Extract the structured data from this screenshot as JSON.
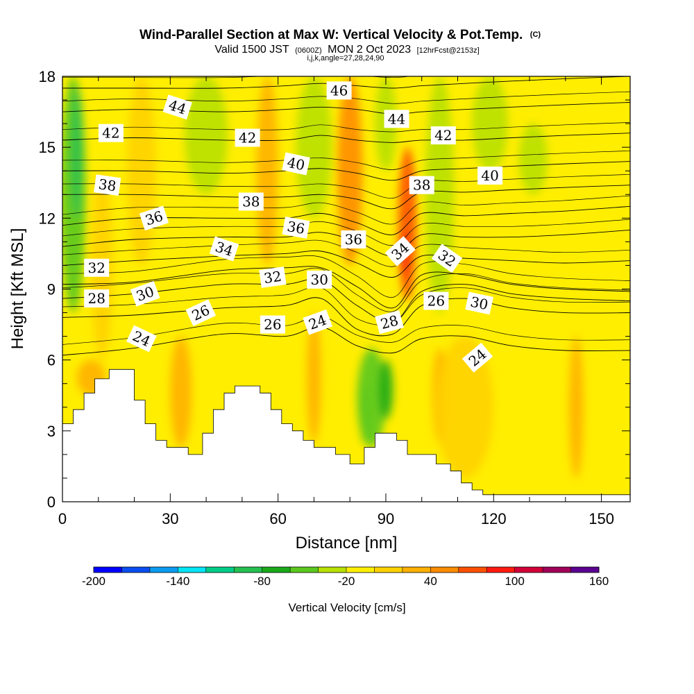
{
  "chart_data": {
    "type": "heatmap",
    "title": "Wind-Parallel Section at Max W: Vertical Velocity & Pot.Temp.",
    "title_mark": "(C)",
    "subtitle": {
      "valid": "Valid 1500 JST",
      "utc": "(0600Z)",
      "date": "MON 2 Oct 2023",
      "forecast": "[12hrFcst@2153z]",
      "line2": "i,j,k,angle=27,28,24,90"
    },
    "xlabel": "Distance [nm]",
    "ylabel": "Height [Kft MSL]",
    "xlim": [
      0,
      158
    ],
    "ylim": [
      0,
      18
    ],
    "xticks": [
      "0",
      "30",
      "60",
      "90",
      "120",
      "150"
    ],
    "yticks": [
      "0",
      "3",
      "6",
      "9",
      "12",
      "15",
      "18"
    ],
    "colorbar": {
      "title": "Vertical Velocity [cm/s]",
      "range": [
        -200,
        160
      ],
      "labels": [
        "-200",
        "-140",
        "-80",
        "-20",
        "40",
        "100",
        "160"
      ],
      "colors": [
        "#0000ff",
        "#0a4df0",
        "#0a9bef",
        "#00e5f5",
        "#00cc88",
        "#25c050",
        "#1aaa1a",
        "#5ac81e",
        "#b8e000",
        "#ffef00",
        "#ffd200",
        "#ffb000",
        "#ff8c00",
        "#ff5000",
        "#ff1a10",
        "#d20038",
        "#a00058",
        "#5a0090"
      ]
    },
    "background_color": "#ffee00",
    "terrain": [
      [
        0,
        3.3
      ],
      [
        3,
        3.9
      ],
      [
        6,
        4.6
      ],
      [
        9,
        5.2
      ],
      [
        13,
        5.6
      ],
      [
        20,
        4.3
      ],
      [
        23,
        3.3
      ],
      [
        26,
        2.6
      ],
      [
        29,
        2.3
      ],
      [
        35,
        2.0
      ],
      [
        39,
        2.9
      ],
      [
        42,
        3.9
      ],
      [
        45,
        4.6
      ],
      [
        48,
        4.9
      ],
      [
        55,
        4.6
      ],
      [
        58,
        3.9
      ],
      [
        61,
        3.3
      ],
      [
        64,
        3.0
      ],
      [
        67,
        2.6
      ],
      [
        70,
        2.3
      ],
      [
        76,
        2.0
      ],
      [
        80,
        1.6
      ],
      [
        84,
        2.3
      ],
      [
        87,
        2.9
      ],
      [
        93,
        2.6
      ],
      [
        96,
        2.0
      ],
      [
        104,
        1.6
      ],
      [
        108,
        1.3
      ],
      [
        111,
        0.8
      ],
      [
        114,
        0.5
      ],
      [
        117,
        0.3
      ],
      [
        158,
        0.3
      ]
    ],
    "shading": [
      {
        "x": 3,
        "ybot": 8,
        "ytop": 18,
        "w": 3.5,
        "value": -60
      },
      {
        "x": 4,
        "ybot": 12,
        "ytop": 17.5,
        "w": 1.5,
        "value": -90
      },
      {
        "x": 11,
        "ybot": 6,
        "ytop": 14,
        "w": 3,
        "value": 10
      },
      {
        "x": 22,
        "ybot": 10,
        "ytop": 18,
        "w": 4,
        "value": 15
      },
      {
        "x": 40,
        "ybot": 13,
        "ytop": 18,
        "w": 6,
        "value": -30
      },
      {
        "x": 57,
        "ybot": 10,
        "ytop": 18,
        "w": 3,
        "value": 25
      },
      {
        "x": 70,
        "ybot": 12,
        "ytop": 18,
        "w": 5,
        "value": -35
      },
      {
        "x": 80,
        "ybot": 10,
        "ytop": 18,
        "w": 3.5,
        "value": 40
      },
      {
        "x": 90,
        "ybot": 14,
        "ytop": 18,
        "w": 3,
        "value": -30
      },
      {
        "x": 96,
        "ybot": 8.5,
        "ytop": 15,
        "w": 2.5,
        "value": 60
      },
      {
        "x": 95,
        "ybot": 9.5,
        "ytop": 11.5,
        "w": 1,
        "value": 90
      },
      {
        "x": 105,
        "ybot": 8,
        "ytop": 18,
        "w": 4,
        "value": -30
      },
      {
        "x": 119,
        "ybot": 14,
        "ytop": 18,
        "w": 5,
        "value": -30
      },
      {
        "x": 131,
        "ybot": 13,
        "ytop": 16,
        "w": 4,
        "value": -30
      },
      {
        "x": 86,
        "ybot": 2.3,
        "ytop": 6.5,
        "w": 4,
        "value": -45
      },
      {
        "x": 90,
        "ybot": 3.5,
        "ytop": 6,
        "w": 2,
        "value": -75
      },
      {
        "x": 84,
        "ybot": 2.5,
        "ytop": 5,
        "w": 1.2,
        "value": -55
      },
      {
        "x": 105,
        "ybot": 2.5,
        "ytop": 6.5,
        "w": 2,
        "value": 35
      },
      {
        "x": 112,
        "ybot": 1,
        "ytop": 7,
        "w": 8,
        "value": 15
      },
      {
        "x": 143,
        "ybot": 1,
        "ytop": 7,
        "w": 2,
        "value": 25
      },
      {
        "x": 33,
        "ybot": 2.3,
        "ytop": 7,
        "w": 3,
        "value": 20
      },
      {
        "x": 70,
        "ybot": 2.5,
        "ytop": 8,
        "w": 2,
        "value": 30
      },
      {
        "x": 8,
        "ybot": 4.5,
        "ytop": 6,
        "w": 4,
        "value": 25
      }
    ],
    "theta_contours": [
      {
        "theta": 24,
        "y0": 6.2,
        "knots": [
          [
            0,
            6.2
          ],
          [
            20,
            6.5
          ],
          [
            45,
            7.1
          ],
          [
            62,
            7.0
          ],
          [
            72,
            7.4
          ],
          [
            82,
            6.6
          ],
          [
            92,
            6.3
          ],
          [
            100,
            6.9
          ],
          [
            112,
            7.0
          ],
          [
            125,
            6.6
          ],
          [
            140,
            6.4
          ],
          [
            158,
            6.4
          ]
        ]
      },
      {
        "theta": 26,
        "y0": 7.8,
        "knots": [
          [
            0,
            7.8
          ],
          [
            20,
            7.9
          ],
          [
            45,
            8.2
          ],
          [
            62,
            8.3
          ],
          [
            72,
            8.6
          ],
          [
            82,
            7.3
          ],
          [
            92,
            7.1
          ],
          [
            100,
            8.3
          ],
          [
            112,
            8.6
          ],
          [
            125,
            8.2
          ],
          [
            140,
            8.0
          ],
          [
            158,
            8.0
          ]
        ]
      },
      {
        "theta": 28,
        "y0": 8.6,
        "knots": [
          [
            0,
            8.6
          ],
          [
            20,
            8.8
          ],
          [
            45,
            9.2
          ],
          [
            62,
            9.2
          ],
          [
            72,
            9.4
          ],
          [
            82,
            8.3
          ],
          [
            92,
            7.6
          ],
          [
            100,
            8.9
          ],
          [
            112,
            9.2
          ],
          [
            125,
            8.8
          ],
          [
            140,
            8.6
          ],
          [
            158,
            8.5
          ]
        ]
      },
      {
        "theta": 30,
        "y0": 9.2,
        "knots": [
          [
            0,
            9.2
          ],
          [
            20,
            9.3
          ],
          [
            45,
            9.8
          ],
          [
            62,
            9.9
          ],
          [
            72,
            9.9
          ],
          [
            82,
            9.1
          ],
          [
            92,
            8.2
          ],
          [
            100,
            9.6
          ],
          [
            112,
            9.6
          ],
          [
            125,
            9.2
          ],
          [
            140,
            9.0
          ],
          [
            158,
            8.9
          ]
        ]
      },
      {
        "theta": 32,
        "y0": 10.0,
        "knots": [
          [
            0,
            10.0
          ],
          [
            20,
            10.2
          ],
          [
            45,
            10.4
          ],
          [
            62,
            10.5
          ],
          [
            72,
            10.6
          ],
          [
            82,
            10.1
          ],
          [
            92,
            9.5
          ],
          [
            100,
            10.4
          ],
          [
            112,
            10.3
          ],
          [
            125,
            10.2
          ],
          [
            140,
            10.1
          ],
          [
            158,
            10.2
          ]
        ]
      },
      {
        "theta": 34,
        "y0": 10.8,
        "knots": [
          [
            0,
            10.8
          ],
          [
            20,
            11.1
          ],
          [
            45,
            11.2
          ],
          [
            62,
            11.2
          ],
          [
            72,
            11.4
          ],
          [
            82,
            11.0
          ],
          [
            92,
            10.4
          ],
          [
            100,
            11.3
          ],
          [
            112,
            11.2
          ],
          [
            125,
            11.2
          ],
          [
            140,
            11.3
          ],
          [
            158,
            11.5
          ]
        ]
      },
      {
        "theta": 36,
        "y0": 11.7,
        "knots": [
          [
            0,
            11.7
          ],
          [
            20,
            12.0
          ],
          [
            45,
            12.0
          ],
          [
            62,
            12.0
          ],
          [
            72,
            12.2
          ],
          [
            82,
            11.8
          ],
          [
            92,
            11.3
          ],
          [
            100,
            12.2
          ],
          [
            112,
            12.1
          ],
          [
            125,
            12.2
          ],
          [
            140,
            12.3
          ],
          [
            158,
            12.5
          ]
        ]
      },
      {
        "theta": 38,
        "y0": 13.0,
        "knots": [
          [
            0,
            13.0
          ],
          [
            20,
            13.0
          ],
          [
            45,
            12.9
          ],
          [
            62,
            12.9
          ],
          [
            72,
            13.0
          ],
          [
            82,
            12.8
          ],
          [
            92,
            12.4
          ],
          [
            100,
            13.1
          ],
          [
            112,
            13.1
          ],
          [
            125,
            13.2
          ],
          [
            140,
            13.3
          ],
          [
            158,
            13.4
          ]
        ]
      },
      {
        "theta": 40,
        "y0": 14.0,
        "knots": [
          [
            0,
            14.0
          ],
          [
            20,
            14.0
          ],
          [
            45,
            13.9
          ],
          [
            62,
            14.0
          ],
          [
            72,
            14.1
          ],
          [
            82,
            13.9
          ],
          [
            92,
            13.6
          ],
          [
            100,
            14.0
          ],
          [
            112,
            14.1
          ],
          [
            125,
            14.2
          ],
          [
            140,
            14.3
          ],
          [
            158,
            14.4
          ]
        ]
      },
      {
        "theta": 42,
        "y0": 15.3,
        "knots": [
          [
            0,
            15.3
          ],
          [
            20,
            15.4
          ],
          [
            45,
            15.3
          ],
          [
            62,
            15.3
          ],
          [
            72,
            15.5
          ],
          [
            82,
            15.3
          ],
          [
            92,
            15.2
          ],
          [
            100,
            15.3
          ],
          [
            112,
            15.3
          ],
          [
            125,
            15.4
          ],
          [
            140,
            15.5
          ],
          [
            158,
            15.6
          ]
        ]
      },
      {
        "theta": 44,
        "y0": 16.5,
        "knots": [
          [
            0,
            16.5
          ],
          [
            20,
            16.6
          ],
          [
            45,
            16.5
          ],
          [
            62,
            16.6
          ],
          [
            72,
            16.7
          ],
          [
            82,
            16.6
          ],
          [
            92,
            16.4
          ],
          [
            100,
            16.5
          ],
          [
            112,
            16.6
          ],
          [
            125,
            16.7
          ],
          [
            140,
            16.8
          ],
          [
            158,
            16.9
          ]
        ]
      },
      {
        "theta": 46,
        "y0": 17.5,
        "knots": [
          [
            0,
            17.5
          ],
          [
            20,
            17.5
          ],
          [
            45,
            17.5
          ],
          [
            62,
            17.6
          ],
          [
            72,
            17.7
          ],
          [
            82,
            17.6
          ],
          [
            92,
            17.5
          ],
          [
            100,
            17.6
          ],
          [
            112,
            17.7
          ],
          [
            125,
            17.8
          ],
          [
            140,
            17.9
          ],
          [
            158,
            18.0
          ]
        ]
      }
    ],
    "contour_labels": [
      {
        "text": "42",
        "x": 13.5,
        "y": 15.6,
        "angle": 0
      },
      {
        "text": "44",
        "x": 32,
        "y": 16.7,
        "angle": 18
      },
      {
        "text": "46",
        "x": 77,
        "y": 17.4,
        "angle": 0
      },
      {
        "text": "44",
        "x": 93,
        "y": 16.2,
        "angle": 0
      },
      {
        "text": "42",
        "x": 51.5,
        "y": 15.4,
        "angle": 0
      },
      {
        "text": "42",
        "x": 106,
        "y": 15.5,
        "angle": 0
      },
      {
        "text": "40",
        "x": 65,
        "y": 14.3,
        "angle": 12
      },
      {
        "text": "40",
        "x": 119,
        "y": 13.8,
        "angle": 0
      },
      {
        "text": "38",
        "x": 12.5,
        "y": 13.4,
        "angle": 8
      },
      {
        "text": "38",
        "x": 52.5,
        "y": 12.7,
        "angle": 0
      },
      {
        "text": "38",
        "x": 100,
        "y": 13.4,
        "angle": 0
      },
      {
        "text": "36",
        "x": 25.5,
        "y": 12.0,
        "angle": -18
      },
      {
        "text": "36",
        "x": 65,
        "y": 11.6,
        "angle": 10
      },
      {
        "text": "36",
        "x": 81,
        "y": 11.1,
        "angle": 0
      },
      {
        "text": "34",
        "x": 45,
        "y": 10.7,
        "angle": 18
      },
      {
        "text": "34",
        "x": 94,
        "y": 10.6,
        "angle": -42
      },
      {
        "text": "32",
        "x": 9.5,
        "y": 9.9,
        "angle": 0
      },
      {
        "text": "32",
        "x": 58.5,
        "y": 9.5,
        "angle": -8
      },
      {
        "text": "32",
        "x": 107,
        "y": 10.3,
        "angle": 35
      },
      {
        "text": "30",
        "x": 23,
        "y": 8.8,
        "angle": -20
      },
      {
        "text": "30",
        "x": 71.5,
        "y": 9.4,
        "angle": 0
      },
      {
        "text": "30",
        "x": 116,
        "y": 8.4,
        "angle": 12
      },
      {
        "text": "28",
        "x": 9.5,
        "y": 8.6,
        "angle": 0
      },
      {
        "text": "28",
        "x": 91,
        "y": 7.6,
        "angle": -15
      },
      {
        "text": "26",
        "x": 38.5,
        "y": 8.0,
        "angle": -25
      },
      {
        "text": "26",
        "x": 58.5,
        "y": 7.5,
        "angle": 0
      },
      {
        "text": "26",
        "x": 104,
        "y": 8.5,
        "angle": 0
      },
      {
        "text": "24",
        "x": 22,
        "y": 6.9,
        "angle": 25
      },
      {
        "text": "24",
        "x": 71,
        "y": 7.6,
        "angle": -20
      },
      {
        "text": "24",
        "x": 115.5,
        "y": 6.1,
        "angle": -40
      }
    ]
  }
}
